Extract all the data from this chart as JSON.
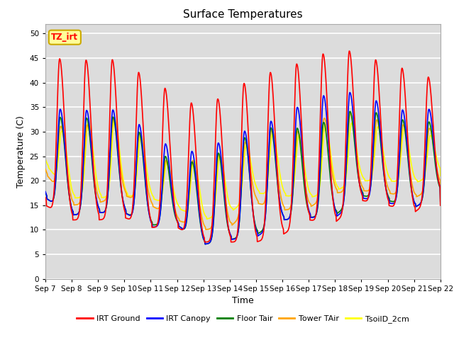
{
  "title": "Surface Temperatures",
  "xlabel": "Time",
  "ylabel": "Temperature (C)",
  "ylim": [
    0,
    52
  ],
  "yticks": [
    0,
    5,
    10,
    15,
    20,
    25,
    30,
    35,
    40,
    45,
    50
  ],
  "bg_color": "#dcdcdc",
  "grid_color": "white",
  "annotation_text": "TZ_irt",
  "annotation_bg": "#ffff99",
  "annotation_border": "#ccaa00",
  "legend_labels": [
    "IRT Ground",
    "IRT Canopy",
    "Floor Tair",
    "Tower TAir",
    "TsoilD_2cm"
  ],
  "line_colors": [
    "red",
    "blue",
    "green",
    "orange",
    "yellow"
  ],
  "days": [
    "Sep 7",
    "Sep 8",
    "Sep 9",
    "Sep 10",
    "Sep 11",
    "Sep 12",
    "Sep 13",
    "Sep 14",
    "Sep 15",
    "Sep 16",
    "Sep 17",
    "Sep 18",
    "Sep 19",
    "Sep 20",
    "Sep 21",
    "Sep 22"
  ],
  "day_peaks_irt_ground": [
    46.5,
    43.5,
    45.5,
    44.0,
    40.5,
    37.5,
    34.5,
    38.5,
    41.0,
    43.0,
    44.5,
    47.0,
    46.0,
    43.5,
    42.5,
    40.0
  ],
  "day_mins_irt_ground": [
    15.0,
    12.0,
    12.0,
    12.5,
    10.5,
    10.5,
    7.5,
    7.5,
    7.5,
    9.0,
    12.0,
    11.5,
    16.0,
    15.0,
    13.5,
    17.5
  ],
  "day_peaks_irt_canopy": [
    36.0,
    33.5,
    35.0,
    34.0,
    29.5,
    26.0,
    26.0,
    29.0,
    31.0,
    33.0,
    36.5,
    38.0,
    38.0,
    35.0,
    34.0,
    35.0
  ],
  "day_mins_irt_canopy": [
    16.5,
    13.0,
    13.5,
    13.5,
    10.5,
    11.0,
    7.0,
    8.0,
    8.5,
    12.0,
    12.5,
    12.5,
    16.5,
    15.5,
    14.5,
    17.5
  ],
  "day_peaks_floor_tair": [
    33.5,
    32.5,
    33.0,
    33.0,
    27.5,
    23.0,
    24.5,
    26.5,
    30.5,
    31.0,
    30.5,
    33.0,
    35.0,
    33.0,
    32.0,
    32.0
  ],
  "day_mins_floor_tair": [
    16.5,
    13.0,
    13.5,
    13.5,
    11.0,
    11.0,
    7.0,
    8.0,
    9.0,
    12.0,
    12.5,
    13.0,
    17.0,
    16.0,
    14.5,
    17.5
  ],
  "day_peaks_tower_tair": [
    32.0,
    30.5,
    32.0,
    33.5,
    27.0,
    22.0,
    25.5,
    25.5,
    29.5,
    31.0,
    29.5,
    35.0,
    33.0,
    32.0,
    31.0,
    30.5
  ],
  "day_mins_tower_tair": [
    21.5,
    15.0,
    15.5,
    17.0,
    15.0,
    12.0,
    10.0,
    10.5,
    15.5,
    14.0,
    14.5,
    17.5,
    18.0,
    17.5,
    16.5,
    19.0
  ],
  "day_peaks_tsoil": [
    30.5,
    30.0,
    33.0,
    32.5,
    27.5,
    22.0,
    25.5,
    25.0,
    28.5,
    30.5,
    28.5,
    33.0,
    31.0,
    31.0,
    30.5,
    28.5
  ],
  "day_mins_tsoil": [
    23.5,
    16.5,
    16.5,
    17.0,
    16.5,
    14.5,
    12.0,
    13.5,
    17.5,
    17.0,
    16.5,
    18.0,
    20.0,
    20.0,
    19.5,
    21.5
  ]
}
